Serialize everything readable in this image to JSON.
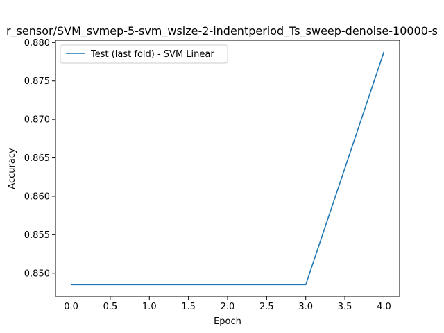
{
  "chart_data": {
    "type": "line",
    "title": "r_sensor/SVM_svmep-5-svm_wsize-2-indentperiod_Ts_sweep-denoise-10000-s",
    "xlabel": "Epoch",
    "ylabel": "Accuracy",
    "xlim": [
      -0.2,
      4.2
    ],
    "ylim": [
      0.847,
      0.8803
    ],
    "x_ticks": [
      0.0,
      0.5,
      1.0,
      1.5,
      2.0,
      2.5,
      3.0,
      3.5,
      4.0
    ],
    "y_ticks": [
      0.85,
      0.855,
      0.86,
      0.865,
      0.87,
      0.875,
      0.88
    ],
    "x_tick_labels": [
      "0.0",
      "0.5",
      "1.0",
      "1.5",
      "2.0",
      "2.5",
      "3.0",
      "3.5",
      "4.0"
    ],
    "y_tick_labels": [
      "0.850",
      "0.855",
      "0.860",
      "0.865",
      "0.870",
      "0.875",
      "0.880"
    ],
    "grid": false,
    "legend_position": "upper-left",
    "series": [
      {
        "name": "Test (last fold) - SVM Linear",
        "color": "#1f77b4",
        "x": [
          0,
          1,
          2,
          3,
          4
        ],
        "y": [
          0.8485,
          0.8485,
          0.8485,
          0.8485,
          0.8788
        ]
      }
    ]
  }
}
